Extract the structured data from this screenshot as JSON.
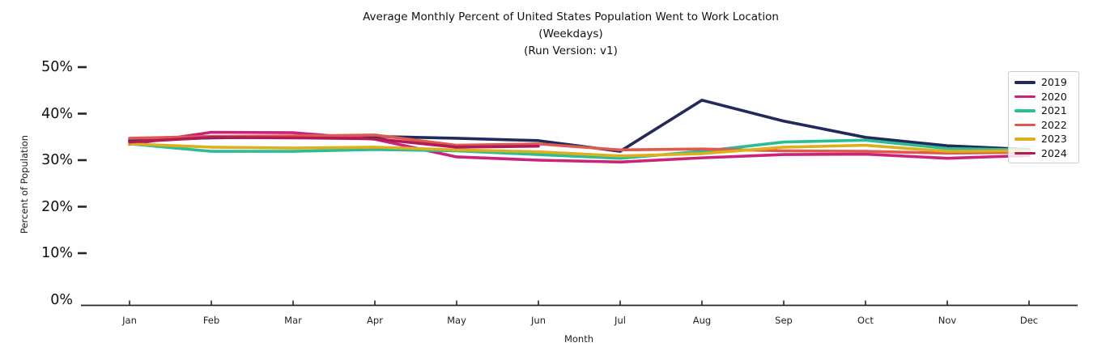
{
  "figure": {
    "title": "Average Monthly Percent of United States Population Went to Work Location",
    "subtitle1": "(Weekdays)",
    "subtitle2": "(Run Version: v1)"
  },
  "chart_data": {
    "type": "line",
    "title": "Average Monthly Percent of United States Population Went to Work Location",
    "subtitles": [
      "(Weekdays)",
      "(Run Version: v1)"
    ],
    "xlabel": "Month",
    "ylabel": "Percent of Population",
    "categories": [
      "Jan",
      "Feb",
      "Mar",
      "Apr",
      "May",
      "Jun",
      "Jul",
      "Aug",
      "Sep",
      "Oct",
      "Nov",
      "Dec"
    ],
    "y_ticks": [
      {
        "value": 0,
        "label": "0%"
      },
      {
        "value": 10,
        "label": "10%"
      },
      {
        "value": 20,
        "label": "20%"
      },
      {
        "value": 30,
        "label": "30%"
      },
      {
        "value": 40,
        "label": "40%"
      },
      {
        "value": 50,
        "label": "50%"
      }
    ],
    "ylim": [
      0,
      50
    ],
    "grid": false,
    "legend_position": "upper right",
    "unit": "percent",
    "series": [
      {
        "name": "2019",
        "color": "#24295b",
        "values": [
          34.2,
          34.8,
          35.0,
          35.1,
          34.7,
          34.2,
          31.9,
          42.9,
          38.4,
          34.9,
          33.1,
          32.3
        ]
      },
      {
        "name": "2020",
        "color": "#c9237a",
        "values": [
          33.4,
          36.0,
          35.9,
          34.5,
          30.7,
          30.0,
          29.6,
          30.5,
          31.2,
          31.3,
          30.4,
          31.0
        ]
      },
      {
        "name": "2021",
        "color": "#2bbd96",
        "values": [
          33.5,
          31.9,
          31.9,
          32.3,
          32.0,
          31.2,
          30.4,
          31.9,
          33.9,
          34.3,
          32.5,
          32.2
        ]
      },
      {
        "name": "2022",
        "color": "#e0594f",
        "values": [
          34.7,
          35.1,
          35.2,
          35.4,
          33.2,
          33.5,
          32.2,
          32.4,
          32.0,
          31.9,
          31.5,
          31.7
        ]
      },
      {
        "name": "2023",
        "color": "#dcaf1e",
        "values": [
          33.5,
          32.8,
          32.6,
          32.8,
          32.2,
          31.8,
          30.9,
          31.4,
          32.8,
          33.2,
          31.9,
          32.0
        ]
      },
      {
        "name": "2024",
        "color": "#b01b57",
        "values": [
          33.9,
          34.9,
          34.8,
          34.6,
          32.8,
          33.0,
          null,
          null,
          null,
          null,
          null,
          null
        ]
      }
    ]
  },
  "colors": {
    "axis": "#262626",
    "tick": "#262626",
    "legend_border": "#cccccc",
    "background": "#ffffff"
  }
}
